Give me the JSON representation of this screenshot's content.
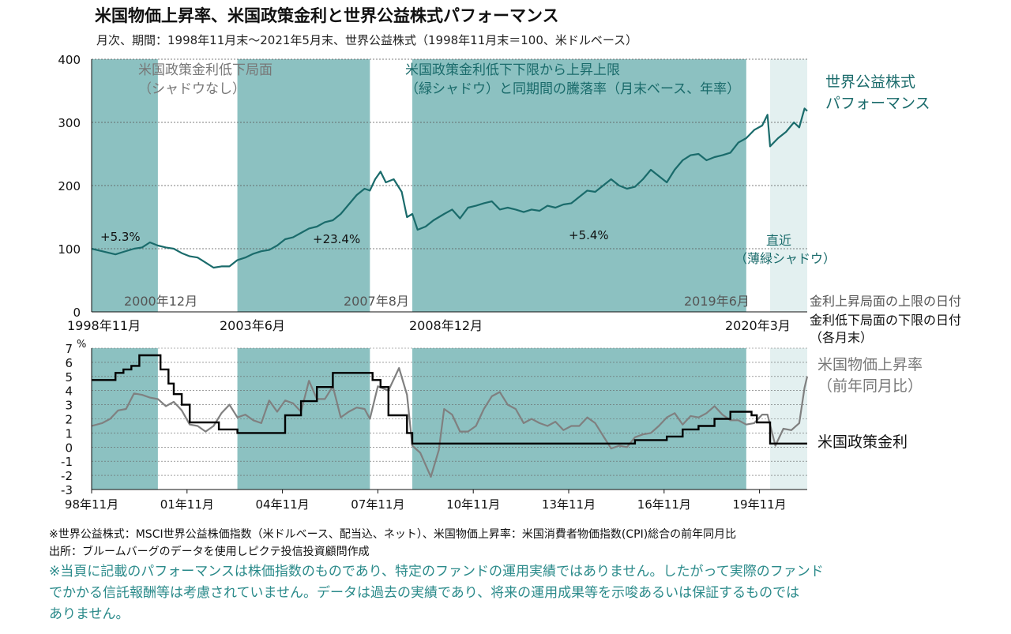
{
  "title": "米国物価上昇率、米国政策金利と世界公益株式パフォーマンス",
  "subtitle": "月次、期間：1998年11月末～2021年5月末、世界公益株式（1998年11月末＝100、米ドルベース）",
  "colors": {
    "shade": "#8cc1c1",
    "light_shade": "#e3f0f0",
    "equity_line": "#1a6b6b",
    "cpi_line": "#808080",
    "rate_line": "#000000",
    "label_gray": "#777777",
    "label_teal": "#1a6b6b",
    "negative_tick": "#cc0000",
    "disclaimer": "#2a8a8a"
  },
  "annotations": {
    "shadow_note_1": "米国政策金利低下局面",
    "shadow_note_2": "（シャドウなし）",
    "green_note_1": "米国政策金利低下下限から上昇上限",
    "green_note_2": "（緑シャドウ）と同期間の騰落率（月末ベース、年率）",
    "equity_label_1": "世界公益株式",
    "equity_label_2": "パフォーマンス",
    "recent_1": "直近",
    "recent_2": "（薄緑シャドウ）",
    "peak_date_legend": "金利上昇局面の上限の日付",
    "trough_date_legend_1": "金利低下局面の下限の日付",
    "trough_date_legend_2": "（各月末）",
    "cpi_label_1": "米国物価上昇率",
    "cpi_label_2": "（前年同月比）",
    "rate_label": "米国政策金利",
    "percent_unit": "%"
  },
  "period_returns": [
    "+5.3%",
    "+23.4%",
    "+5.4%"
  ],
  "peak_dates": [
    "2000年12月",
    "2007年8月",
    "2019年6月"
  ],
  "trough_dates": [
    "1998年11月",
    "2003年6月",
    "2008年12月",
    "2020年3月"
  ],
  "footnotes": {
    "note": "※世界公益株式：MSCI世界公益株価指数（米ドルベース、配当込、ネット）、米国物価上昇率：米国消費者物価指数(CPI)総合の前年同月比",
    "source": "出所：ブルームバーグのデータを使用しピクテ投信投資顧問作成",
    "disclaimer_1": "※当頁に記載のパフォーマンスは株価指数のものであり、特定のファンドの運用実績ではありません。したがって実際のファンド",
    "disclaimer_2": "でかかる信託報酬等は考慮されていません。データは過去の実績であり、将来の運用成果等を示唆あるいは保証するものでは",
    "disclaimer_3": "ありません。"
  },
  "chart_data": [
    {
      "type": "line",
      "name": "top",
      "x_range": [
        "1998-11",
        "2021-05"
      ],
      "ylim": [
        0,
        400
      ],
      "yticks": [
        0,
        100,
        200,
        300,
        400
      ],
      "grid": true,
      "shaded_periods": [
        {
          "start": "1998-11",
          "end": "2000-12",
          "style": "green"
        },
        {
          "start": "2003-06",
          "end": "2007-08",
          "style": "green"
        },
        {
          "start": "2008-12",
          "end": "2019-06",
          "style": "green"
        },
        {
          "start": "2020-03",
          "end": "2021-05",
          "style": "light"
        }
      ],
      "series": [
        {
          "name": "世界公益株式パフォーマンス",
          "points": [
            [
              "1998-11",
              100
            ],
            [
              "1999-02",
              97
            ],
            [
              "1999-05",
              94
            ],
            [
              "1999-08",
              91
            ],
            [
              "1999-11",
              95
            ],
            [
              "2000-03",
              100
            ],
            [
              "2000-06",
              102
            ],
            [
              "2000-09",
              110
            ],
            [
              "2000-12",
              105
            ],
            [
              "2001-03",
              102
            ],
            [
              "2001-06",
              100
            ],
            [
              "2001-09",
              93
            ],
            [
              "2001-12",
              88
            ],
            [
              "2002-03",
              86
            ],
            [
              "2002-06",
              78
            ],
            [
              "2002-09",
              70
            ],
            [
              "2002-12",
              72
            ],
            [
              "2003-03",
              72
            ],
            [
              "2003-06",
              82
            ],
            [
              "2003-09",
              86
            ],
            [
              "2003-12",
              92
            ],
            [
              "2004-03",
              96
            ],
            [
              "2004-06",
              98
            ],
            [
              "2004-09",
              105
            ],
            [
              "2004-12",
              115
            ],
            [
              "2005-03",
              118
            ],
            [
              "2005-06",
              125
            ],
            [
              "2005-09",
              132
            ],
            [
              "2005-12",
              135
            ],
            [
              "2006-03",
              142
            ],
            [
              "2006-06",
              145
            ],
            [
              "2006-09",
              155
            ],
            [
              "2006-12",
              170
            ],
            [
              "2007-03",
              185
            ],
            [
              "2007-06",
              195
            ],
            [
              "2007-08",
              192
            ],
            [
              "2007-10",
              210
            ],
            [
              "2007-12",
              222
            ],
            [
              "2008-02",
              205
            ],
            [
              "2008-05",
              210
            ],
            [
              "2008-08",
              190
            ],
            [
              "2008-10",
              150
            ],
            [
              "2008-12",
              155
            ],
            [
              "2009-02",
              130
            ],
            [
              "2009-05",
              135
            ],
            [
              "2009-08",
              145
            ],
            [
              "2009-12",
              155
            ],
            [
              "2010-03",
              162
            ],
            [
              "2010-06",
              148
            ],
            [
              "2010-09",
              165
            ],
            [
              "2010-12",
              168
            ],
            [
              "2011-03",
              172
            ],
            [
              "2011-06",
              175
            ],
            [
              "2011-09",
              162
            ],
            [
              "2011-12",
              165
            ],
            [
              "2012-03",
              162
            ],
            [
              "2012-06",
              158
            ],
            [
              "2012-09",
              162
            ],
            [
              "2012-12",
              160
            ],
            [
              "2013-03",
              168
            ],
            [
              "2013-06",
              165
            ],
            [
              "2013-09",
              170
            ],
            [
              "2013-12",
              172
            ],
            [
              "2014-03",
              182
            ],
            [
              "2014-06",
              192
            ],
            [
              "2014-09",
              190
            ],
            [
              "2014-12",
              200
            ],
            [
              "2015-03",
              210
            ],
            [
              "2015-06",
              200
            ],
            [
              "2015-09",
              195
            ],
            [
              "2015-12",
              198
            ],
            [
              "2016-03",
              210
            ],
            [
              "2016-06",
              225
            ],
            [
              "2016-09",
              215
            ],
            [
              "2016-12",
              205
            ],
            [
              "2017-03",
              225
            ],
            [
              "2017-06",
              240
            ],
            [
              "2017-09",
              248
            ],
            [
              "2017-12",
              250
            ],
            [
              "2018-03",
              240
            ],
            [
              "2018-06",
              245
            ],
            [
              "2018-09",
              248
            ],
            [
              "2018-12",
              252
            ],
            [
              "2019-03",
              268
            ],
            [
              "2019-06",
              275
            ],
            [
              "2019-09",
              288
            ],
            [
              "2019-12",
              295
            ],
            [
              "2020-02",
              312
            ],
            [
              "2020-03",
              262
            ],
            [
              "2020-06",
              275
            ],
            [
              "2020-09",
              285
            ],
            [
              "2020-12",
              300
            ],
            [
              "2021-02",
              292
            ],
            [
              "2021-04",
              322
            ],
            [
              "2021-05",
              318
            ]
          ]
        }
      ]
    },
    {
      "type": "line",
      "name": "bottom",
      "x_range": [
        "1998-11",
        "2021-05"
      ],
      "ylim": [
        -3,
        7
      ],
      "yticks": [
        -3,
        -2,
        -1,
        0,
        1,
        2,
        3,
        4,
        5,
        6,
        7
      ],
      "xticks": [
        "98年11月",
        "01年11月",
        "04年11月",
        "07年11月",
        "10年11月",
        "13年11月",
        "16年11月",
        "19年11月"
      ],
      "grid": true,
      "series": [
        {
          "name": "米国物価上昇率",
          "points": [
            [
              "1998-11",
              1.5
            ],
            [
              "1999-03",
              1.7
            ],
            [
              "1999-06",
              2.0
            ],
            [
              "1999-09",
              2.6
            ],
            [
              "1999-12",
              2.7
            ],
            [
              "2000-03",
              3.8
            ],
            [
              "2000-06",
              3.7
            ],
            [
              "2000-09",
              3.5
            ],
            [
              "2000-12",
              3.4
            ],
            [
              "2001-03",
              2.9
            ],
            [
              "2001-06",
              3.2
            ],
            [
              "2001-09",
              2.6
            ],
            [
              "2001-12",
              1.6
            ],
            [
              "2002-03",
              1.5
            ],
            [
              "2002-06",
              1.1
            ],
            [
              "2002-09",
              1.5
            ],
            [
              "2002-12",
              2.4
            ],
            [
              "2003-03",
              3.0
            ],
            [
              "2003-06",
              2.1
            ],
            [
              "2003-09",
              2.3
            ],
            [
              "2003-12",
              1.9
            ],
            [
              "2004-03",
              1.7
            ],
            [
              "2004-06",
              3.3
            ],
            [
              "2004-09",
              2.5
            ],
            [
              "2004-12",
              3.3
            ],
            [
              "2005-03",
              3.1
            ],
            [
              "2005-06",
              2.5
            ],
            [
              "2005-09",
              4.7
            ],
            [
              "2005-12",
              3.4
            ],
            [
              "2006-03",
              3.4
            ],
            [
              "2006-06",
              4.3
            ],
            [
              "2006-09",
              2.1
            ],
            [
              "2006-12",
              2.5
            ],
            [
              "2007-03",
              2.8
            ],
            [
              "2007-06",
              2.7
            ],
            [
              "2007-08",
              2.0
            ],
            [
              "2007-11",
              4.3
            ],
            [
              "2008-03",
              4.0
            ],
            [
              "2008-07",
              5.6
            ],
            [
              "2008-10",
              3.7
            ],
            [
              "2008-12",
              0.1
            ],
            [
              "2009-03",
              -0.4
            ],
            [
              "2009-07",
              -2.1
            ],
            [
              "2009-10",
              -0.2
            ],
            [
              "2009-12",
              2.7
            ],
            [
              "2010-03",
              2.3
            ],
            [
              "2010-06",
              1.1
            ],
            [
              "2010-09",
              1.1
            ],
            [
              "2010-12",
              1.5
            ],
            [
              "2011-03",
              2.7
            ],
            [
              "2011-06",
              3.6
            ],
            [
              "2011-09",
              3.9
            ],
            [
              "2011-12",
              3.0
            ],
            [
              "2012-03",
              2.7
            ],
            [
              "2012-06",
              1.7
            ],
            [
              "2012-09",
              2.0
            ],
            [
              "2012-12",
              1.7
            ],
            [
              "2013-03",
              1.5
            ],
            [
              "2013-06",
              1.8
            ],
            [
              "2013-09",
              1.2
            ],
            [
              "2013-12",
              1.5
            ],
            [
              "2014-03",
              1.5
            ],
            [
              "2014-06",
              2.1
            ],
            [
              "2014-09",
              1.7
            ],
            [
              "2014-12",
              0.8
            ],
            [
              "2015-03",
              -0.1
            ],
            [
              "2015-06",
              0.1
            ],
            [
              "2015-09",
              0.0
            ],
            [
              "2015-12",
              0.7
            ],
            [
              "2016-03",
              0.9
            ],
            [
              "2016-06",
              1.0
            ],
            [
              "2016-09",
              1.5
            ],
            [
              "2016-12",
              2.1
            ],
            [
              "2017-03",
              2.4
            ],
            [
              "2017-06",
              1.6
            ],
            [
              "2017-09",
              2.2
            ],
            [
              "2017-12",
              2.1
            ],
            [
              "2018-03",
              2.4
            ],
            [
              "2018-06",
              2.9
            ],
            [
              "2018-09",
              2.3
            ],
            [
              "2018-12",
              1.9
            ],
            [
              "2019-03",
              1.9
            ],
            [
              "2019-06",
              1.6
            ],
            [
              "2019-09",
              1.7
            ],
            [
              "2019-12",
              2.3
            ],
            [
              "2020-02",
              2.3
            ],
            [
              "2020-05",
              0.1
            ],
            [
              "2020-08",
              1.3
            ],
            [
              "2020-11",
              1.2
            ],
            [
              "2021-02",
              1.7
            ],
            [
              "2021-04",
              4.2
            ],
            [
              "2021-05",
              5.0
            ]
          ]
        },
        {
          "name": "米国政策金利",
          "points": [
            [
              "1998-11",
              4.75
            ],
            [
              "1999-06",
              4.75
            ],
            [
              "1999-08",
              5.25
            ],
            [
              "1999-11",
              5.5
            ],
            [
              "2000-02",
              5.75
            ],
            [
              "2000-05",
              6.5
            ],
            [
              "2000-12",
              6.5
            ],
            [
              "2001-01",
              5.5
            ],
            [
              "2001-04",
              4.5
            ],
            [
              "2001-06",
              3.75
            ],
            [
              "2001-09",
              3.0
            ],
            [
              "2001-12",
              1.75
            ],
            [
              "2002-11",
              1.25
            ],
            [
              "2003-06",
              1.0
            ],
            [
              "2004-06",
              1.0
            ],
            [
              "2004-12",
              2.25
            ],
            [
              "2005-06",
              3.25
            ],
            [
              "2005-12",
              4.25
            ],
            [
              "2006-06",
              5.25
            ],
            [
              "2007-08",
              5.25
            ],
            [
              "2007-09",
              4.75
            ],
            [
              "2007-12",
              4.25
            ],
            [
              "2008-03",
              2.25
            ],
            [
              "2008-10",
              1.0
            ],
            [
              "2008-12",
              0.25
            ],
            [
              "2015-12",
              0.5
            ],
            [
              "2016-12",
              0.75
            ],
            [
              "2017-06",
              1.25
            ],
            [
              "2017-12",
              1.5
            ],
            [
              "2018-06",
              2.0
            ],
            [
              "2018-12",
              2.5
            ],
            [
              "2019-06",
              2.5
            ],
            [
              "2019-08",
              2.25
            ],
            [
              "2019-10",
              1.75
            ],
            [
              "2020-02",
              1.75
            ],
            [
              "2020-03",
              0.25
            ],
            [
              "2021-05",
              0.25
            ]
          ]
        }
      ]
    }
  ]
}
